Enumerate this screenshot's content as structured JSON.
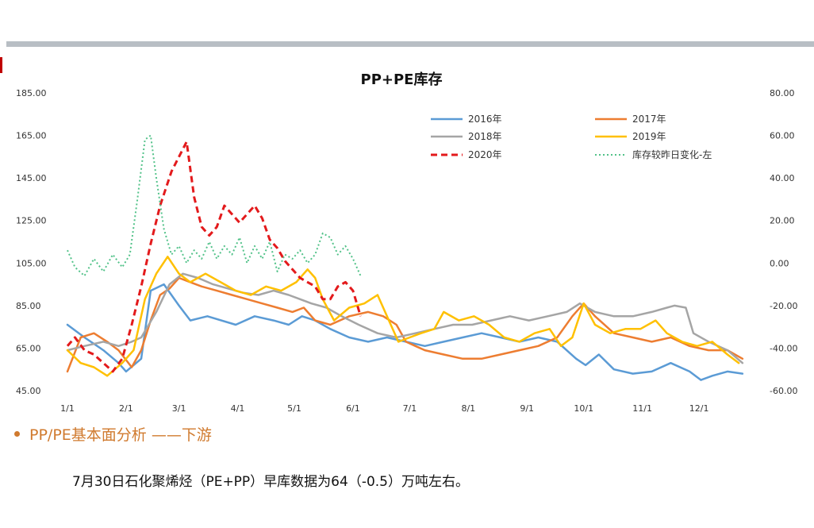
{
  "section_title": "PP/PE基本面分析 ——下游",
  "note": "7月30日石化聚烯烃（PE+PP）早库数据为64（-0.5）万吨左右。",
  "chart_data": {
    "type": "line",
    "title": "PP+PE库存",
    "x_ticks": [
      "1/1",
      "2/1",
      "3/1",
      "4/1",
      "5/1",
      "6/1",
      "7/1",
      "8/1",
      "9/1",
      "10/1",
      "11/1",
      "12/1"
    ],
    "y_left": {
      "ticks": [
        "185.00",
        "165.00",
        "145.00",
        "125.00",
        "105.00",
        "85.00",
        "65.00",
        "45.00"
      ],
      "range": [
        45,
        185
      ]
    },
    "y_right": {
      "ticks": [
        "80.00",
        "60.00",
        "40.00",
        "20.00",
        "0.00",
        "-20.00",
        "-40.00",
        "-60.00"
      ],
      "range": [
        -60,
        80
      ]
    },
    "grid": false,
    "legend_position": "top-right",
    "series": [
      {
        "name": "2016年",
        "color": "#5b9bd5",
        "dash": "solid",
        "axis": "left",
        "points": [
          [
            1,
            76
          ],
          [
            10,
            70
          ],
          [
            20,
            64
          ],
          [
            28,
            58
          ],
          [
            32,
            54
          ],
          [
            40,
            60
          ],
          [
            45,
            92
          ],
          [
            52,
            95
          ],
          [
            60,
            85
          ],
          [
            66,
            78
          ],
          [
            75,
            80
          ],
          [
            90,
            76
          ],
          [
            100,
            80
          ],
          [
            110,
            78
          ],
          [
            118,
            76
          ],
          [
            125,
            80
          ],
          [
            132,
            78
          ],
          [
            140,
            74
          ],
          [
            150,
            70
          ],
          [
            160,
            68
          ],
          [
            170,
            70
          ],
          [
            180,
            68
          ],
          [
            190,
            66
          ],
          [
            200,
            68
          ],
          [
            210,
            70
          ],
          [
            220,
            72
          ],
          [
            230,
            70
          ],
          [
            240,
            68
          ],
          [
            250,
            70
          ],
          [
            260,
            68
          ],
          [
            270,
            60
          ],
          [
            275,
            57
          ],
          [
            282,
            62
          ],
          [
            290,
            55
          ],
          [
            300,
            53
          ],
          [
            310,
            54
          ],
          [
            320,
            58
          ],
          [
            330,
            54
          ],
          [
            336,
            50
          ],
          [
            342,
            52
          ],
          [
            350,
            54
          ],
          [
            358,
            53
          ]
        ]
      },
      {
        "name": "2017年",
        "color": "#ed7d31",
        "dash": "solid",
        "axis": "left",
        "points": [
          [
            1,
            54
          ],
          [
            8,
            70
          ],
          [
            15,
            72
          ],
          [
            22,
            68
          ],
          [
            28,
            64
          ],
          [
            35,
            56
          ],
          [
            40,
            64
          ],
          [
            45,
            78
          ],
          [
            50,
            90
          ],
          [
            55,
            93
          ],
          [
            60,
            98
          ],
          [
            66,
            96
          ],
          [
            72,
            94
          ],
          [
            80,
            92
          ],
          [
            88,
            90
          ],
          [
            96,
            88
          ],
          [
            104,
            86
          ],
          [
            112,
            84
          ],
          [
            120,
            82
          ],
          [
            126,
            84
          ],
          [
            132,
            78
          ],
          [
            140,
            76
          ],
          [
            150,
            80
          ],
          [
            160,
            82
          ],
          [
            168,
            80
          ],
          [
            175,
            76
          ],
          [
            180,
            68
          ],
          [
            185,
            66
          ],
          [
            190,
            64
          ],
          [
            200,
            62
          ],
          [
            210,
            60
          ],
          [
            220,
            60
          ],
          [
            230,
            62
          ],
          [
            240,
            64
          ],
          [
            250,
            66
          ],
          [
            260,
            70
          ],
          [
            268,
            80
          ],
          [
            274,
            86
          ],
          [
            280,
            80
          ],
          [
            290,
            72
          ],
          [
            300,
            70
          ],
          [
            310,
            68
          ],
          [
            320,
            70
          ],
          [
            330,
            66
          ],
          [
            340,
            64
          ],
          [
            350,
            64
          ],
          [
            358,
            60
          ]
        ]
      },
      {
        "name": "2018年",
        "color": "#a5a5a5",
        "dash": "solid",
        "axis": "left",
        "points": [
          [
            1,
            64
          ],
          [
            10,
            66
          ],
          [
            20,
            68
          ],
          [
            28,
            66
          ],
          [
            35,
            68
          ],
          [
            40,
            70
          ],
          [
            48,
            82
          ],
          [
            55,
            95
          ],
          [
            62,
            100
          ],
          [
            70,
            98
          ],
          [
            78,
            95
          ],
          [
            86,
            93
          ],
          [
            94,
            91
          ],
          [
            102,
            90
          ],
          [
            110,
            92
          ],
          [
            118,
            90
          ],
          [
            124,
            88
          ],
          [
            130,
            86
          ],
          [
            138,
            84
          ],
          [
            146,
            80
          ],
          [
            155,
            76
          ],
          [
            165,
            72
          ],
          [
            175,
            70
          ],
          [
            185,
            72
          ],
          [
            195,
            74
          ],
          [
            205,
            76
          ],
          [
            215,
            76
          ],
          [
            225,
            78
          ],
          [
            235,
            80
          ],
          [
            245,
            78
          ],
          [
            255,
            80
          ],
          [
            265,
            82
          ],
          [
            272,
            86
          ],
          [
            280,
            82
          ],
          [
            290,
            80
          ],
          [
            300,
            80
          ],
          [
            310,
            82
          ],
          [
            318,
            84
          ],
          [
            322,
            85
          ],
          [
            328,
            84
          ],
          [
            332,
            72
          ],
          [
            340,
            68
          ],
          [
            350,
            64
          ],
          [
            358,
            58
          ]
        ]
      },
      {
        "name": "2019年",
        "color": "#ffc000",
        "dash": "solid",
        "axis": "left",
        "points": [
          [
            1,
            64
          ],
          [
            8,
            58
          ],
          [
            15,
            56
          ],
          [
            22,
            52
          ],
          [
            30,
            58
          ],
          [
            36,
            64
          ],
          [
            42,
            88
          ],
          [
            48,
            100
          ],
          [
            54,
            108
          ],
          [
            60,
            100
          ],
          [
            66,
            96
          ],
          [
            74,
            100
          ],
          [
            82,
            96
          ],
          [
            90,
            92
          ],
          [
            98,
            90
          ],
          [
            106,
            94
          ],
          [
            114,
            92
          ],
          [
            122,
            96
          ],
          [
            128,
            102
          ],
          [
            132,
            98
          ],
          [
            136,
            88
          ],
          [
            142,
            78
          ],
          [
            150,
            84
          ],
          [
            158,
            86
          ],
          [
            165,
            90
          ],
          [
            170,
            80
          ],
          [
            176,
            68
          ],
          [
            182,
            70
          ],
          [
            188,
            72
          ],
          [
            195,
            74
          ],
          [
            200,
            82
          ],
          [
            208,
            78
          ],
          [
            216,
            80
          ],
          [
            224,
            76
          ],
          [
            232,
            70
          ],
          [
            240,
            68
          ],
          [
            248,
            72
          ],
          [
            256,
            74
          ],
          [
            262,
            66
          ],
          [
            268,
            70
          ],
          [
            274,
            86
          ],
          [
            280,
            76
          ],
          [
            288,
            72
          ],
          [
            296,
            74
          ],
          [
            304,
            74
          ],
          [
            312,
            78
          ],
          [
            318,
            72
          ],
          [
            326,
            68
          ],
          [
            334,
            66
          ],
          [
            342,
            68
          ],
          [
            350,
            62
          ],
          [
            356,
            58
          ]
        ]
      },
      {
        "name": "2020年",
        "color": "#e31a1c",
        "dash": "dashed",
        "axis": "left",
        "points": [
          [
            1,
            66
          ],
          [
            5,
            70
          ],
          [
            10,
            64
          ],
          [
            15,
            62
          ],
          [
            20,
            58
          ],
          [
            25,
            54
          ],
          [
            30,
            60
          ],
          [
            35,
            76
          ],
          [
            40,
            94
          ],
          [
            45,
            114
          ],
          [
            50,
            132
          ],
          [
            56,
            148
          ],
          [
            60,
            155
          ],
          [
            64,
            162
          ],
          [
            68,
            136
          ],
          [
            72,
            122
          ],
          [
            76,
            118
          ],
          [
            80,
            122
          ],
          [
            84,
            132
          ],
          [
            88,
            128
          ],
          [
            92,
            124
          ],
          [
            96,
            128
          ],
          [
            100,
            132
          ],
          [
            104,
            126
          ],
          [
            108,
            116
          ],
          [
            112,
            112
          ],
          [
            116,
            106
          ],
          [
            120,
            102
          ],
          [
            124,
            98
          ],
          [
            128,
            96
          ],
          [
            132,
            94
          ],
          [
            136,
            88
          ],
          [
            140,
            88
          ],
          [
            144,
            94
          ],
          [
            148,
            96
          ],
          [
            152,
            92
          ],
          [
            156,
            80
          ]
        ]
      },
      {
        "name": "库存较昨日变化-左",
        "color": "#52c289",
        "dash": "dotted",
        "axis": "right",
        "points": [
          [
            1,
            6
          ],
          [
            5,
            -2
          ],
          [
            10,
            -6
          ],
          [
            15,
            2
          ],
          [
            20,
            -4
          ],
          [
            25,
            4
          ],
          [
            30,
            -2
          ],
          [
            34,
            4
          ],
          [
            38,
            30
          ],
          [
            42,
            58
          ],
          [
            45,
            60
          ],
          [
            48,
            40
          ],
          [
            52,
            16
          ],
          [
            56,
            4
          ],
          [
            60,
            8
          ],
          [
            64,
            0
          ],
          [
            68,
            6
          ],
          [
            72,
            2
          ],
          [
            76,
            10
          ],
          [
            80,
            2
          ],
          [
            84,
            8
          ],
          [
            88,
            4
          ],
          [
            92,
            12
          ],
          [
            96,
            0
          ],
          [
            100,
            8
          ],
          [
            104,
            2
          ],
          [
            108,
            10
          ],
          [
            112,
            -4
          ],
          [
            116,
            4
          ],
          [
            120,
            2
          ],
          [
            124,
            6
          ],
          [
            128,
            0
          ],
          [
            132,
            4
          ],
          [
            136,
            14
          ],
          [
            140,
            12
          ],
          [
            144,
            4
          ],
          [
            148,
            8
          ],
          [
            152,
            2
          ],
          [
            156,
            -6
          ]
        ]
      }
    ]
  }
}
